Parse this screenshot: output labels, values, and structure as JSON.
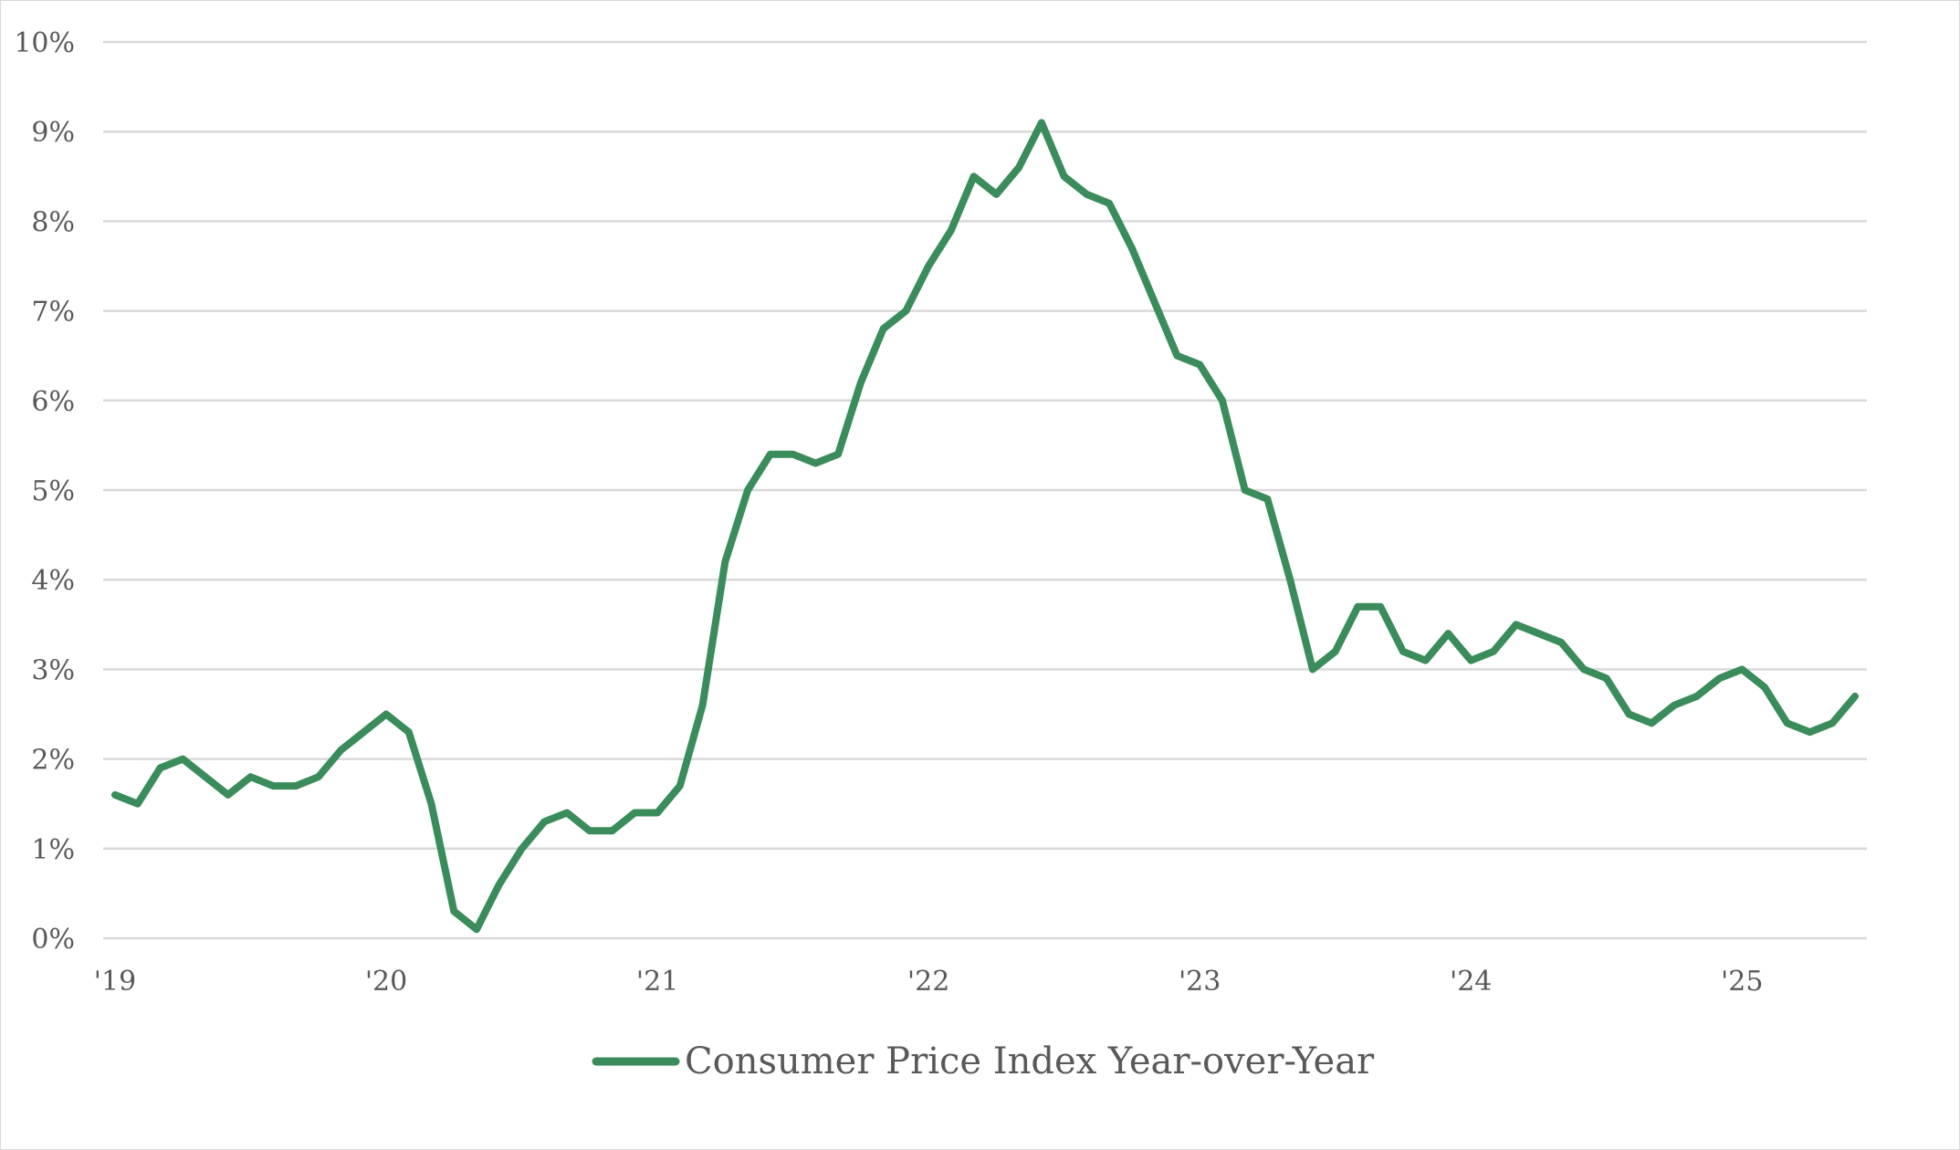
{
  "chart_data": {
    "type": "line",
    "title": "",
    "xlabel": "",
    "ylabel": "",
    "ylim": [
      0,
      10
    ],
    "xlim": [
      "2019-01",
      "2025-06"
    ],
    "grid": "horizontal",
    "legend_position": "bottom",
    "line_color": "#3a8c5a",
    "y_tick_labels": [
      "0%",
      "1%",
      "2%",
      "3%",
      "4%",
      "5%",
      "6%",
      "7%",
      "8%",
      "9%",
      "10%"
    ],
    "x_tick_labels": [
      "'19",
      "'20",
      "'21",
      "'22",
      "'23",
      "'24",
      "'25"
    ],
    "x_tick_dates": [
      "2019-01",
      "2020-01",
      "2021-01",
      "2022-01",
      "2023-01",
      "2024-01",
      "2025-01"
    ],
    "series": [
      {
        "name": "Consumer Price Index Year-over-Year",
        "x": [
          "2019-01",
          "2019-02",
          "2019-03",
          "2019-04",
          "2019-05",
          "2019-06",
          "2019-07",
          "2019-08",
          "2019-09",
          "2019-10",
          "2019-11",
          "2019-12",
          "2020-01",
          "2020-02",
          "2020-03",
          "2020-04",
          "2020-05",
          "2020-06",
          "2020-07",
          "2020-08",
          "2020-09",
          "2020-10",
          "2020-11",
          "2020-12",
          "2021-01",
          "2021-02",
          "2021-03",
          "2021-04",
          "2021-05",
          "2021-06",
          "2021-07",
          "2021-08",
          "2021-09",
          "2021-10",
          "2021-11",
          "2021-12",
          "2022-01",
          "2022-02",
          "2022-03",
          "2022-04",
          "2022-05",
          "2022-06",
          "2022-07",
          "2022-08",
          "2022-09",
          "2022-10",
          "2022-11",
          "2022-12",
          "2023-01",
          "2023-02",
          "2023-03",
          "2023-04",
          "2023-05",
          "2023-06",
          "2023-07",
          "2023-08",
          "2023-09",
          "2023-10",
          "2023-11",
          "2023-12",
          "2024-01",
          "2024-02",
          "2024-03",
          "2024-04",
          "2024-05",
          "2024-06",
          "2024-07",
          "2024-08",
          "2024-09",
          "2024-10",
          "2024-11",
          "2024-12",
          "2025-01",
          "2025-02",
          "2025-03",
          "2025-04",
          "2025-05",
          "2025-06"
        ],
        "values": [
          1.6,
          1.5,
          1.9,
          2.0,
          1.8,
          1.6,
          1.8,
          1.7,
          1.7,
          1.8,
          2.1,
          2.3,
          2.5,
          2.3,
          1.5,
          0.3,
          0.1,
          0.6,
          1.0,
          1.3,
          1.4,
          1.2,
          1.2,
          1.4,
          1.4,
          1.7,
          2.6,
          4.2,
          5.0,
          5.4,
          5.4,
          5.3,
          5.4,
          6.2,
          6.8,
          7.0,
          7.5,
          7.9,
          8.5,
          8.3,
          8.6,
          9.1,
          8.5,
          8.3,
          8.2,
          7.7,
          7.1,
          6.5,
          6.4,
          6.0,
          5.0,
          4.9,
          4.0,
          3.0,
          3.2,
          3.7,
          3.7,
          3.2,
          3.1,
          3.4,
          3.1,
          3.2,
          3.5,
          3.4,
          3.3,
          3.0,
          2.9,
          2.5,
          2.4,
          2.6,
          2.7,
          2.9,
          3.0,
          2.8,
          2.4,
          2.3,
          2.4,
          2.7
        ]
      }
    ]
  }
}
